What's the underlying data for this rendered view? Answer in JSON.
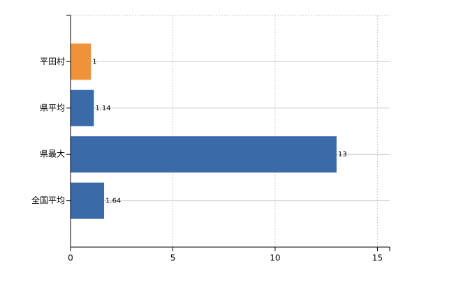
{
  "chart_data": {
    "type": "hbar",
    "categories": [
      "平田村",
      "県平均",
      "県最大",
      "全国平均"
    ],
    "values": [
      1,
      1.14,
      13,
      1.64
    ],
    "colors": [
      "#f0923a",
      "#3a6aa8",
      "#3a6aa8",
      "#3a6aa8"
    ],
    "xlim": [
      0,
      15.6
    ],
    "xticks": [
      0,
      5,
      10,
      15
    ],
    "grid": true
  }
}
